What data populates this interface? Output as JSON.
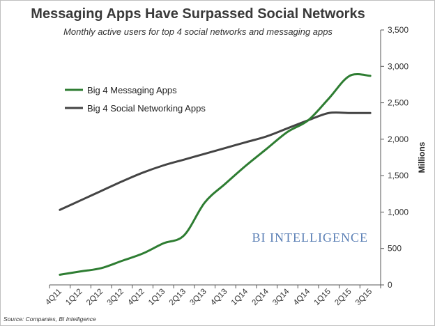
{
  "chart_data": {
    "type": "line",
    "title": "Messaging Apps Have Surpassed Social Networks",
    "subtitle": "Monthly active users for top 4 social networks and messaging apps",
    "ylabel": "Millions",
    "xlabel": "",
    "ylim": [
      0,
      3500
    ],
    "yticks": [
      "0",
      "500",
      "1,000",
      "1,500",
      "2,000",
      "2,500",
      "3,000",
      "3,500"
    ],
    "y_axis_position": "right",
    "grid": false,
    "legend_position": "top-left",
    "categories": [
      "4Q11",
      "1Q12",
      "2Q12",
      "3Q12",
      "4Q12",
      "1Q13",
      "2Q13",
      "3Q13",
      "4Q13",
      "1Q14",
      "2Q14",
      "3Q14",
      "4Q14",
      "1Q15",
      "2Q15",
      "3Q15"
    ],
    "series": [
      {
        "name": "Big 4 Messaging Apps",
        "color": "#2e7d32",
        "values": [
          140,
          185,
          230,
          330,
          430,
          570,
          680,
          1130,
          1390,
          1640,
          1870,
          2100,
          2260,
          2560,
          2870,
          2870
        ]
      },
      {
        "name": "Big 4 Social Networking Apps",
        "color": "#444444",
        "values": [
          1030,
          1160,
          1290,
          1420,
          1540,
          1640,
          1720,
          1800,
          1880,
          1960,
          2040,
          2150,
          2260,
          2360,
          2360,
          2360
        ]
      }
    ]
  },
  "watermark": "BI INTELLIGENCE",
  "source": "Source: Companies, BI Intelligence"
}
